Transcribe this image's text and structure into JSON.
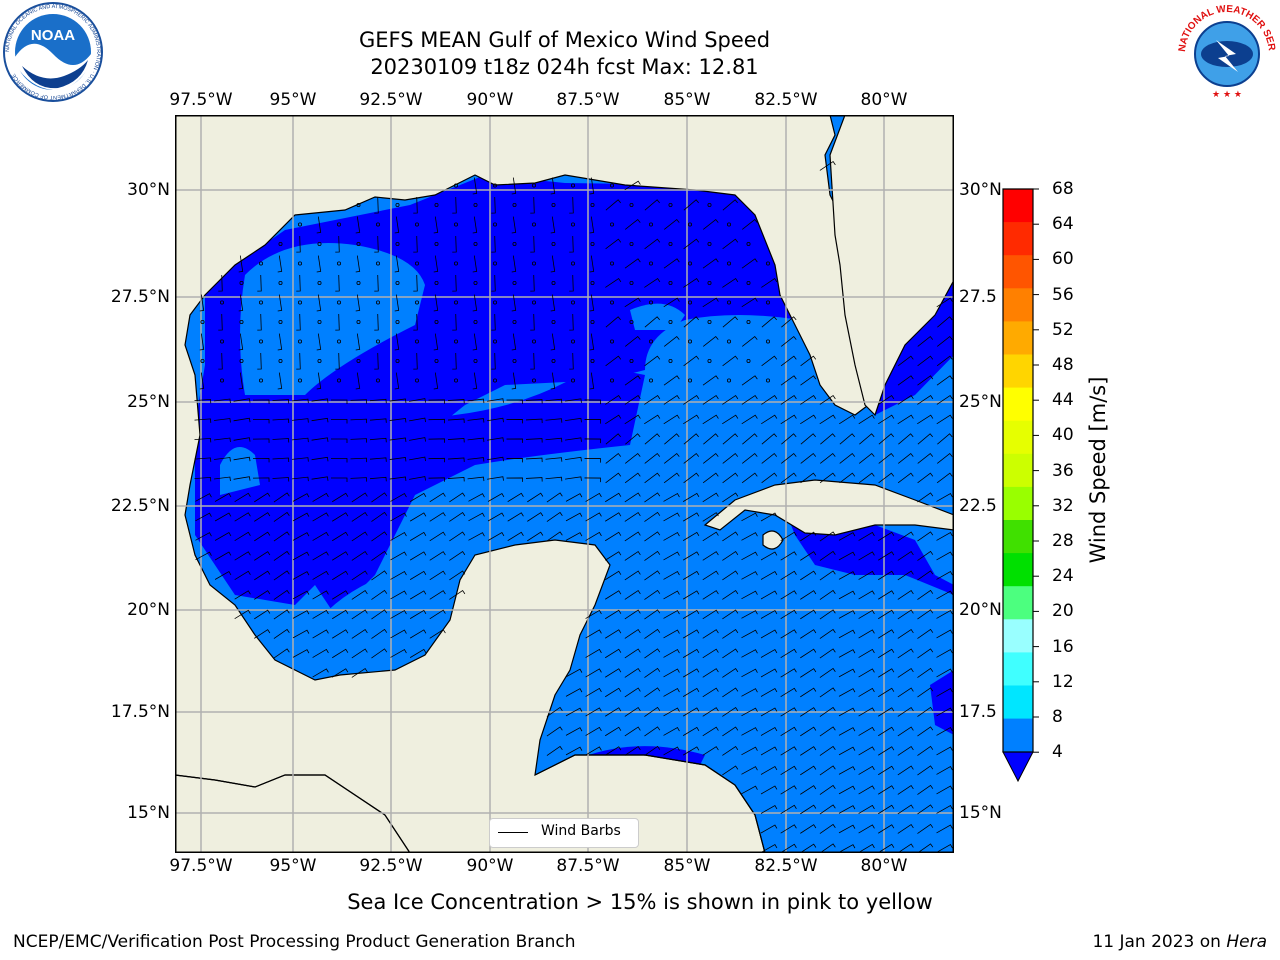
{
  "title": {
    "line1": "GEFS MEAN Gulf of Mexico Wind Speed",
    "line2": "20230109 t18z 024h fcst   Max: 12.81"
  },
  "lon_ticks": [
    "97.5°W",
    "95°W",
    "92.5°W",
    "90°W",
    "87.5°W",
    "85°W",
    "82.5°W",
    "80°W"
  ],
  "lat_ticks_left": [
    "30°N",
    "27.5°N",
    "25°N",
    "22.5°N",
    "20°N",
    "17.5°N",
    "15°N"
  ],
  "lat_ticks_right": [
    "30°N",
    "27.5",
    "25°N",
    "22.5",
    "20°N",
    "17.5",
    "15°N"
  ],
  "colorbar": {
    "label": "Wind Speed [m/s]",
    "ticks": [
      "68",
      "64",
      "60",
      "56",
      "52",
      "48",
      "44",
      "40",
      "36",
      "32",
      "28",
      "24",
      "20",
      "16",
      "12",
      "8",
      "4"
    ],
    "colors": [
      "#ff0000",
      "#ff2a00",
      "#ff5500",
      "#ff8000",
      "#ffaa00",
      "#ffd500",
      "#ffff00",
      "#e6ff00",
      "#ccff00",
      "#99ff00",
      "#40e000",
      "#00e000",
      "#4cff7f",
      "#99ffff",
      "#40ffff",
      "#00e6ff",
      "#0080ff"
    ],
    "under_color": "#0000ff"
  },
  "legend": {
    "label": "Wind Barbs"
  },
  "caption": "Sea Ice Concentration > 15% is shown in pink to yellow",
  "credit": "NCEP/EMC/Verification Post Processing Product Generation Branch",
  "date": {
    "text": "11 Jan 2023 on",
    "machine": "Hera"
  },
  "map_colors": {
    "land": "#efefdf",
    "calm": "#0000ff",
    "light": "#0080ff",
    "moderate": "#00e6ff",
    "strong": "#40ffff",
    "grid": "#b0b0b0"
  },
  "logos": {
    "noaa": {
      "text": "NOAA",
      "ring": "NATIONAL OCEANIC AND ATMOSPHERIC ADMINISTRATION · U.S. DEPARTMENT OF COMMERCE"
    },
    "nws": {
      "ring": "NATIONAL WEATHER SERVICE"
    }
  }
}
